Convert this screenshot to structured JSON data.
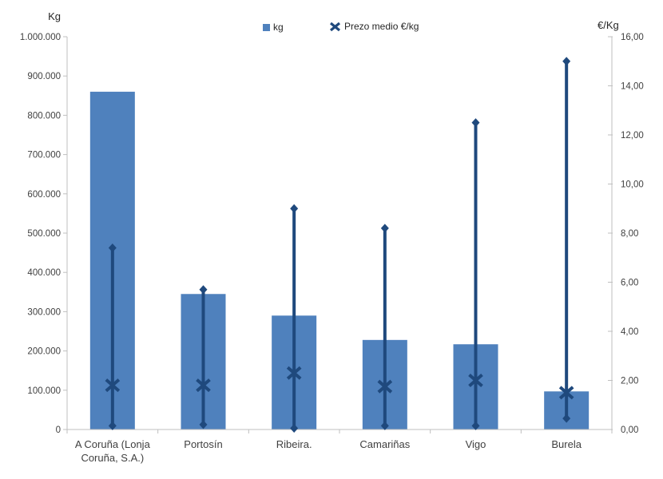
{
  "chart_data": {
    "type": "bar",
    "title": "",
    "categories": [
      "A Coruña (Lonja Coruña, S.A.)",
      "Portosín",
      "Ribeira.",
      "Camariñas",
      "Vigo",
      "Burela"
    ],
    "category_label_lines": [
      [
        "A Coruña (Lonja",
        "Coruña, S.A.)"
      ],
      [
        "Portosín"
      ],
      [
        "Ribeira."
      ],
      [
        "Camariñas"
      ],
      [
        "Vigo"
      ],
      [
        "Burela"
      ]
    ],
    "left_axis": {
      "label": "Kg",
      "min": 0,
      "max": 1000000,
      "step": 100000,
      "tick_labels": [
        "0",
        "100.000",
        "200.000",
        "300.000",
        "400.000",
        "500.000",
        "600.000",
        "700.000",
        "800.000",
        "900.000",
        "1.000.000"
      ]
    },
    "right_axis": {
      "label": "€/Kg",
      "min": 0,
      "max": 16,
      "step": 2,
      "tick_labels": [
        "0,00",
        "2,00",
        "4,00",
        "6,00",
        "8,00",
        "10,00",
        "12,00",
        "14,00",
        "16,00"
      ]
    },
    "series": [
      {
        "name": "kg",
        "type": "bar",
        "axis": "left",
        "color": "#4F81BD",
        "values": [
          860000,
          345000,
          290000,
          228000,
          217000,
          97000
        ]
      },
      {
        "name": "Prezo medio €/kg",
        "type": "highlow-avg",
        "axis": "right",
        "color": "#1F497D",
        "avg": [
          1.8,
          1.8,
          2.3,
          1.75,
          2.0,
          1.5
        ],
        "max": [
          7.4,
          5.7,
          9.0,
          8.2,
          12.5,
          15.0
        ],
        "min": [
          0.15,
          0.2,
          0.05,
          0.15,
          0.15,
          0.45
        ]
      }
    ],
    "legend": [
      {
        "label": "kg",
        "marker": "square",
        "color": "#4F81BD"
      },
      {
        "label": "Prezo medio €/kg",
        "marker": "x",
        "color": "#1F497D"
      }
    ],
    "layout_hints": {
      "grid": false,
      "legend_position": "top",
      "axis_color": "#BFBFBF"
    }
  }
}
